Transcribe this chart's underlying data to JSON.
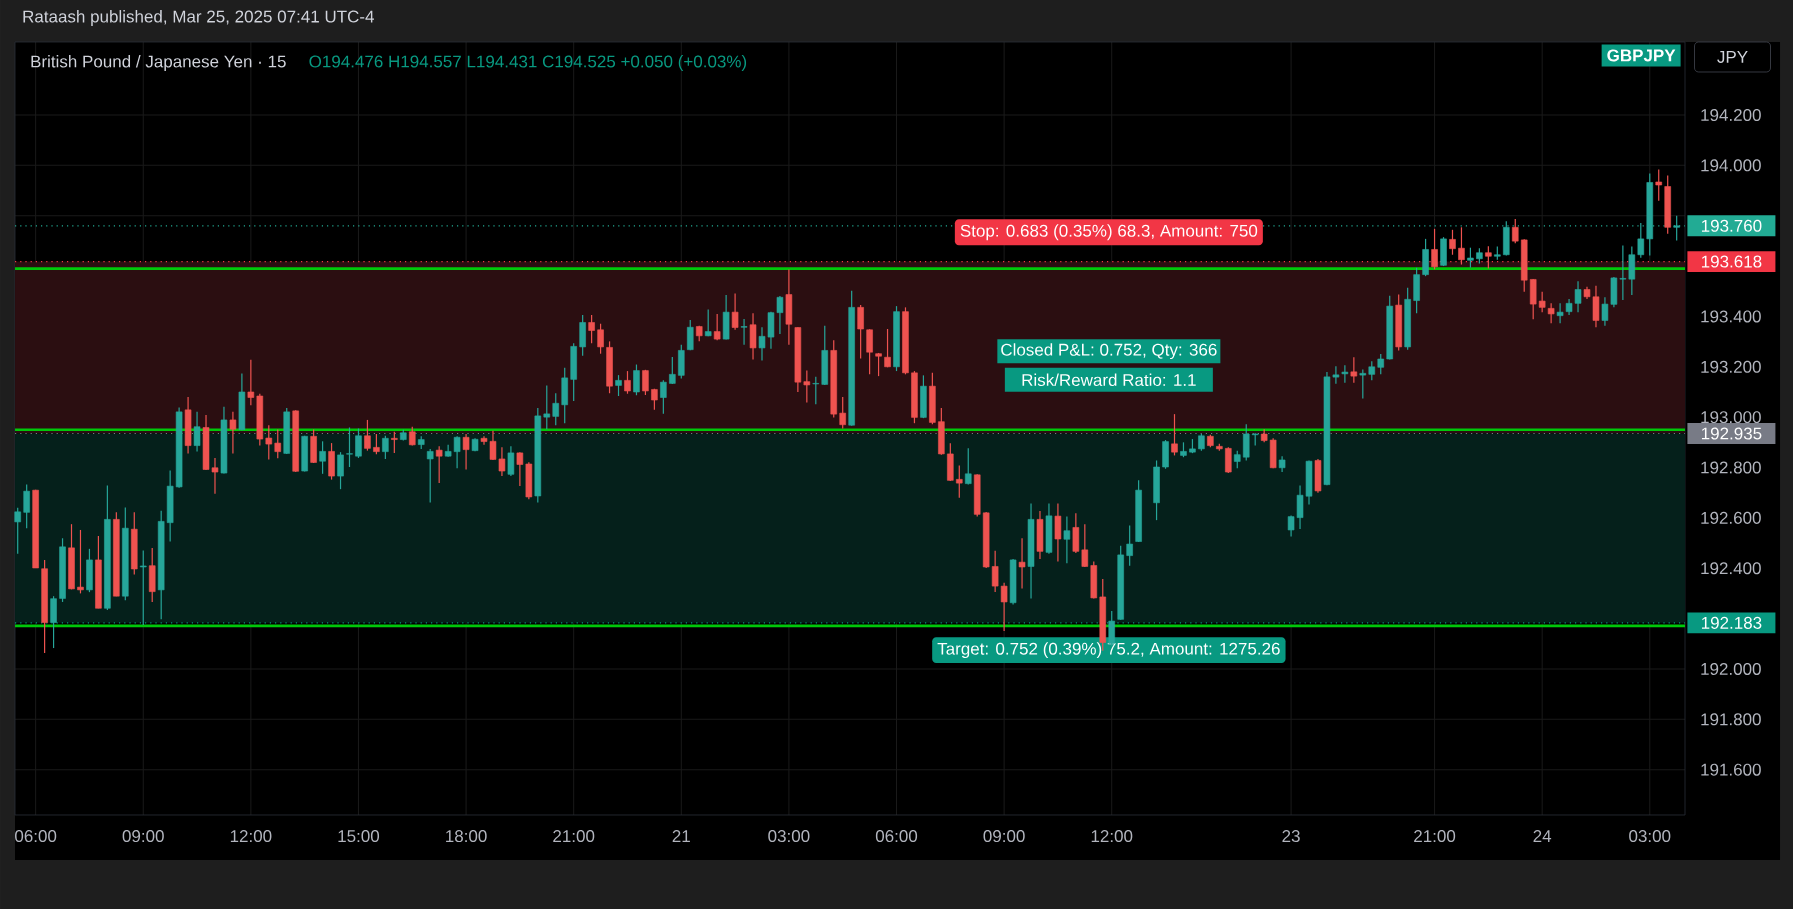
{
  "chart_data": {
    "type": "candlestick",
    "title": "British Pound / Japanese Yen · 15",
    "subtitle": "O194.476 H194.557 L194.431 C194.525 +0.050 (+0.03%)",
    "annotations": [
      "Rataash published, Mar 25, 2025 07:41 UTC-4",
      "GBPJPY",
      "JPY",
      {
        "text": "Stop: 0.683 (0.35%) 68.3, Amount: 750",
        "y": 193.618
      },
      {
        "text": "Target: 0.752 (0.39%) 75.2, Amount: 1275.26",
        "y": 192.183
      },
      "Closed P&L: 0.752, Qty: 366",
      "Risk/Reward Ratio: 1.1"
    ],
    "categories": [
      null,
      null,
      "06:00",
      null,
      null,
      null,
      null,
      null,
      null,
      null,
      null,
      null,
      null,
      null,
      "09:00",
      null,
      null,
      null,
      null,
      null,
      null,
      null,
      null,
      null,
      null,
      null,
      "12:00",
      null,
      null,
      null,
      null,
      null,
      null,
      null,
      null,
      null,
      null,
      null,
      "15:00",
      null,
      null,
      null,
      null,
      null,
      null,
      null,
      null,
      null,
      null,
      null,
      "18:00",
      null,
      null,
      null,
      null,
      null,
      null,
      null,
      null,
      null,
      null,
      null,
      "21:00",
      null,
      null,
      null,
      null,
      null,
      null,
      null,
      null,
      null,
      null,
      null,
      "21",
      null,
      null,
      null,
      null,
      null,
      null,
      null,
      null,
      null,
      null,
      null,
      "03:00",
      null,
      null,
      null,
      null,
      null,
      null,
      null,
      null,
      null,
      null,
      null,
      "06:00",
      null,
      null,
      null,
      null,
      null,
      null,
      null,
      null,
      null,
      null,
      null,
      "09:00",
      null,
      null,
      null,
      null,
      null,
      null,
      null,
      null,
      null,
      null,
      null,
      "12:00",
      null,
      null,
      null,
      null,
      null,
      null,
      null,
      null,
      null,
      null,
      null,
      null,
      null,
      null,
      null,
      null,
      null,
      null,
      null,
      "23",
      null,
      null,
      null,
      null,
      null,
      null,
      null,
      null,
      null,
      null,
      null,
      null,
      null,
      null,
      null,
      "21:00",
      null,
      null,
      null,
      null,
      null,
      null,
      null,
      null,
      null,
      null,
      null,
      "24",
      null,
      null,
      null,
      null,
      null,
      null,
      null,
      null,
      null,
      null,
      null,
      "03:00",
      null,
      null,
      null
    ],
    "ohlc": [
      [
        192.584,
        192.64,
        192.457,
        192.624
      ],
      [
        192.622,
        192.733,
        192.559,
        192.706
      ],
      [
        192.71,
        192.712,
        192.401,
        192.401
      ],
      [
        192.398,
        192.433,
        192.063,
        192.184
      ],
      [
        192.184,
        192.289,
        192.083,
        192.279
      ],
      [
        192.28,
        192.519,
        192.266,
        192.485
      ],
      [
        192.481,
        192.575,
        192.316,
        192.318
      ],
      [
        192.325,
        192.552,
        192.3,
        192.314
      ],
      [
        192.314,
        192.477,
        192.305,
        192.433
      ],
      [
        192.433,
        192.528,
        192.241,
        192.241
      ],
      [
        192.241,
        192.729,
        192.234,
        192.594
      ],
      [
        192.594,
        192.622,
        192.289,
        192.289
      ],
      [
        192.289,
        192.641,
        192.273,
        192.559
      ],
      [
        192.555,
        192.622,
        192.375,
        192.397
      ],
      [
        192.405,
        192.47,
        192.175,
        192.409
      ],
      [
        192.41,
        192.48,
        192.266,
        192.307
      ],
      [
        192.314,
        192.628,
        192.197,
        192.586
      ],
      [
        192.581,
        192.788,
        192.506,
        192.726
      ],
      [
        192.723,
        193.038,
        192.72,
        193.021
      ],
      [
        193.029,
        193.08,
        192.856,
        192.887
      ],
      [
        192.887,
        193.021,
        192.864,
        192.962
      ],
      [
        192.959,
        193.009,
        192.79,
        192.792
      ],
      [
        192.799,
        192.838,
        192.696,
        192.782
      ],
      [
        192.778,
        193.041,
        192.776,
        192.989
      ],
      [
        192.989,
        193.021,
        192.856,
        192.952
      ],
      [
        192.95,
        193.173,
        192.948,
        193.1
      ],
      [
        193.1,
        193.228,
        193.047,
        193.078
      ],
      [
        193.084,
        193.093,
        192.887,
        192.913
      ],
      [
        192.917,
        192.968,
        192.832,
        192.893
      ],
      [
        192.897,
        192.951,
        192.837,
        192.863
      ],
      [
        192.856,
        193.036,
        192.854,
        193.021
      ],
      [
        193.025,
        193.027,
        192.782,
        192.785
      ],
      [
        192.786,
        192.926,
        192.784,
        192.924
      ],
      [
        192.924,
        192.951,
        192.818,
        192.82
      ],
      [
        192.825,
        192.904,
        192.775,
        192.864
      ],
      [
        192.864,
        192.897,
        192.752,
        192.766
      ],
      [
        192.766,
        192.861,
        192.714,
        192.85
      ],
      [
        192.853,
        192.959,
        192.802,
        192.855
      ],
      [
        192.845,
        192.955,
        192.838,
        192.926
      ],
      [
        192.926,
        192.989,
        192.867,
        192.876
      ],
      [
        192.88,
        192.933,
        192.853,
        192.863
      ],
      [
        192.863,
        192.926,
        192.834,
        192.916
      ],
      [
        192.916,
        192.942,
        192.858,
        192.911
      ],
      [
        192.911,
        192.95,
        192.907,
        192.938
      ],
      [
        192.942,
        192.962,
        192.887,
        192.89
      ],
      [
        192.891,
        192.924,
        192.874,
        192.911
      ],
      [
        192.834,
        192.874,
        192.661,
        192.864
      ],
      [
        192.869,
        192.884,
        192.738,
        192.845
      ],
      [
        192.845,
        192.89,
        192.843,
        192.864
      ],
      [
        192.863,
        192.924,
        192.797,
        192.92
      ],
      [
        192.92,
        192.933,
        192.792,
        192.871
      ],
      [
        192.867,
        192.916,
        192.865,
        192.912
      ],
      [
        192.916,
        192.924,
        192.89,
        192.903
      ],
      [
        192.904,
        192.946,
        192.83,
        192.832
      ],
      [
        192.834,
        192.88,
        192.766,
        192.786
      ],
      [
        192.773,
        192.884,
        192.766,
        192.858
      ],
      [
        192.858,
        192.861,
        192.727,
        192.812
      ],
      [
        192.814,
        192.821,
        192.674,
        192.683
      ],
      [
        192.687,
        193.036,
        192.661,
        193.005
      ],
      [
        193.0,
        193.126,
        192.952,
        193.013
      ],
      [
        193.003,
        193.095,
        192.968,
        193.055
      ],
      [
        193.049,
        193.196,
        192.976,
        193.156
      ],
      [
        193.15,
        193.294,
        193.064,
        193.281
      ],
      [
        193.279,
        193.406,
        193.244,
        193.376
      ],
      [
        193.376,
        193.406,
        193.294,
        193.344
      ],
      [
        193.347,
        193.371,
        193.252,
        193.279
      ],
      [
        193.277,
        193.301,
        193.095,
        193.123
      ],
      [
        193.126,
        193.167,
        193.084,
        193.146
      ],
      [
        193.146,
        193.183,
        193.093,
        193.104
      ],
      [
        193.1,
        193.209,
        193.087,
        193.185
      ],
      [
        193.185,
        193.188,
        193.088,
        193.104
      ],
      [
        193.11,
        193.113,
        193.029,
        193.068
      ],
      [
        193.078,
        193.147,
        193.014,
        193.139
      ],
      [
        193.134,
        193.239,
        193.132,
        193.17
      ],
      [
        193.166,
        193.288,
        193.154,
        193.265
      ],
      [
        193.268,
        193.386,
        193.266,
        193.357
      ],
      [
        193.36,
        193.363,
        193.301,
        193.323
      ],
      [
        193.323,
        193.428,
        193.321,
        193.34
      ],
      [
        193.34,
        193.41,
        193.305,
        193.31
      ],
      [
        193.31,
        193.485,
        193.308,
        193.417
      ],
      [
        193.417,
        193.491,
        193.347,
        193.356
      ],
      [
        193.357,
        193.39,
        193.288,
        193.36
      ],
      [
        193.367,
        193.413,
        193.229,
        193.275
      ],
      [
        193.275,
        193.357,
        193.225,
        193.321
      ],
      [
        193.318,
        193.419,
        193.272,
        193.415
      ],
      [
        193.415,
        193.481,
        193.33,
        193.476
      ],
      [
        193.487,
        193.586,
        193.288,
        193.369
      ],
      [
        193.356,
        193.357,
        193.1,
        193.139
      ],
      [
        193.141,
        193.185,
        193.058,
        193.128
      ],
      [
        193.132,
        193.16,
        193.051,
        193.134
      ],
      [
        193.13,
        193.363,
        193.128,
        193.265
      ],
      [
        193.265,
        193.305,
        192.999,
        193.012
      ],
      [
        193.016,
        193.08,
        192.955,
        192.97
      ],
      [
        192.968,
        193.502,
        192.966,
        193.436
      ],
      [
        193.436,
        193.445,
        193.233,
        193.35
      ],
      [
        193.347,
        193.349,
        193.17,
        193.258
      ],
      [
        193.252,
        193.255,
        193.163,
        193.242
      ],
      [
        193.238,
        193.35,
        193.198,
        193.2
      ],
      [
        193.2,
        193.441,
        193.183,
        193.419
      ],
      [
        193.419,
        193.436,
        193.17,
        193.176
      ],
      [
        193.176,
        193.183,
        192.976,
        192.999
      ],
      [
        192.999,
        193.166,
        192.996,
        193.123
      ],
      [
        193.123,
        193.176,
        192.972,
        192.979
      ],
      [
        192.982,
        193.036,
        192.851,
        192.854
      ],
      [
        192.854,
        192.896,
        192.746,
        192.749
      ],
      [
        192.753,
        192.808,
        192.68,
        192.738
      ],
      [
        192.736,
        192.876,
        192.733,
        192.775
      ],
      [
        192.771,
        192.773,
        192.605,
        192.614
      ],
      [
        192.62,
        192.623,
        192.401,
        192.405
      ],
      [
        192.407,
        192.469,
        192.306,
        192.329
      ],
      [
        192.329,
        192.342,
        192.151,
        192.266
      ],
      [
        192.263,
        192.437,
        192.256,
        192.433
      ],
      [
        192.424,
        192.519,
        192.319,
        192.405
      ],
      [
        192.407,
        192.657,
        192.28,
        192.594
      ],
      [
        192.594,
        192.627,
        192.437,
        192.467
      ],
      [
        192.463,
        192.657,
        192.457,
        192.608
      ],
      [
        192.607,
        192.657,
        192.427,
        192.516
      ],
      [
        192.515,
        192.605,
        192.42,
        192.549
      ],
      [
        192.562,
        192.618,
        192.46,
        192.467
      ],
      [
        192.473,
        192.575,
        192.405,
        192.407
      ],
      [
        192.411,
        192.427,
        192.28,
        192.282
      ],
      [
        192.286,
        192.357,
        192.072,
        192.105
      ],
      [
        192.101,
        192.23,
        192.092,
        192.19
      ],
      [
        192.197,
        192.489,
        192.195,
        192.453
      ],
      [
        192.45,
        192.57,
        192.41,
        192.496
      ],
      [
        192.506,
        192.749,
        192.504,
        192.71
      ],
      null,
      [
        192.66,
        192.828,
        192.591,
        192.802
      ],
      [
        192.802,
        192.909,
        192.795,
        192.903
      ],
      [
        192.894,
        193.012,
        192.848,
        192.861
      ],
      [
        192.848,
        192.9,
        192.841,
        192.864
      ],
      [
        192.861,
        192.913,
        192.857,
        192.874
      ],
      [
        192.874,
        192.933,
        192.867,
        192.926
      ],
      [
        192.924,
        192.93,
        192.88,
        192.887
      ],
      [
        192.884,
        192.894,
        192.867,
        192.874
      ],
      [
        192.876,
        192.88,
        192.778,
        192.782
      ],
      [
        192.824,
        192.867,
        192.797,
        192.851
      ],
      [
        192.841,
        192.972,
        192.828,
        192.933
      ],
      [
        192.93,
        192.936,
        192.887,
        192.933
      ],
      [
        192.933,
        192.952,
        192.9,
        192.907
      ],
      [
        192.909,
        192.916,
        192.797,
        192.799
      ],
      [
        192.799,
        192.845,
        192.782,
        192.83
      ],
      [
        192.552,
        192.609,
        192.526,
        192.605
      ],
      [
        192.601,
        192.729,
        192.556,
        192.69
      ],
      [
        192.686,
        192.828,
        192.653,
        192.825
      ],
      [
        192.828,
        192.834,
        192.7,
        192.707
      ],
      [
        192.732,
        193.179,
        192.73,
        193.16
      ],
      [
        193.159,
        193.202,
        193.133,
        193.168
      ],
      [
        193.172,
        193.206,
        193.137,
        193.179
      ],
      [
        193.18,
        193.238,
        193.137,
        193.163
      ],
      [
        193.167,
        193.189,
        193.074,
        193.174
      ],
      [
        193.17,
        193.222,
        193.147,
        193.2
      ],
      [
        193.198,
        193.251,
        193.17,
        193.231
      ],
      [
        193.231,
        193.482,
        193.229,
        193.441
      ],
      [
        193.445,
        193.487,
        193.265,
        193.279
      ],
      [
        193.279,
        193.514,
        193.268,
        193.468
      ],
      [
        193.463,
        193.593,
        193.413,
        193.566
      ],
      [
        193.566,
        193.708,
        193.56,
        193.666
      ],
      [
        193.666,
        193.748,
        193.587,
        193.597
      ],
      [
        193.603,
        193.715,
        193.6,
        193.708
      ],
      [
        193.706,
        193.744,
        193.645,
        193.669
      ],
      [
        193.671,
        193.754,
        193.606,
        193.625
      ],
      [
        193.623,
        193.673,
        193.594,
        193.632
      ],
      [
        193.629,
        193.671,
        193.61,
        193.653
      ],
      [
        193.653,
        193.679,
        193.59,
        193.639
      ],
      [
        193.639,
        193.678,
        193.625,
        193.645
      ],
      [
        193.645,
        193.778,
        193.642,
        193.754
      ],
      [
        193.754,
        193.787,
        193.691,
        193.699
      ],
      [
        193.704,
        193.707,
        193.498,
        193.544
      ],
      [
        193.547,
        193.549,
        193.389,
        193.449
      ],
      [
        193.461,
        193.498,
        193.417,
        193.436
      ],
      [
        193.432,
        193.452,
        193.373,
        193.41
      ],
      [
        193.403,
        193.452,
        193.373,
        193.417
      ],
      [
        193.419,
        193.469,
        193.406,
        193.452
      ],
      [
        193.452,
        193.54,
        193.417,
        193.507
      ],
      [
        193.507,
        193.518,
        193.469,
        193.478
      ],
      [
        193.478,
        193.522,
        193.357,
        193.384
      ],
      [
        193.384,
        193.476,
        193.363,
        193.449
      ],
      [
        193.448,
        193.557,
        193.436,
        193.553
      ],
      [
        193.548,
        193.682,
        193.465,
        193.551
      ],
      [
        193.548,
        193.678,
        193.485,
        193.645
      ],
      [
        193.645,
        193.771,
        193.633,
        193.708
      ],
      [
        193.708,
        193.968,
        193.642,
        193.932
      ],
      [
        193.934,
        193.984,
        193.859,
        193.922
      ],
      [
        193.916,
        193.96,
        193.728,
        193.754
      ],
      [
        193.754,
        193.8,
        193.702,
        193.76
      ]
    ],
    "colors": [
      "#26a69a",
      "#26a69a",
      "#ef5350",
      "#ef5350",
      "#26a69a",
      "#26a69a",
      "#ef5350",
      "#ef5350",
      "#26a69a",
      "#ef5350",
      "#26a69a",
      "#ef5350",
      "#26a69a",
      "#ef5350",
      "#26a69a",
      "#ef5350",
      "#26a69a",
      "#26a69a",
      "#26a69a",
      "#ef5350",
      "#26a69a",
      "#ef5350",
      "#ef5350",
      "#26a69a",
      "#ef5350",
      "#26a69a",
      "#ef5350",
      "#ef5350",
      "#ef5350",
      "#ef5350",
      "#26a69a",
      "#ef5350",
      "#26a69a",
      "#ef5350",
      "#26a69a",
      "#ef5350",
      "#26a69a",
      "#26a69a",
      "#26a69a",
      "#ef5350",
      "#ef5350",
      "#26a69a",
      "#ef5350",
      "#26a69a",
      "#ef5350",
      "#26a69a",
      "#26a69a",
      "#ef5350",
      "#26a69a",
      "#26a69a",
      "#ef5350",
      "#26a69a",
      "#ef5350",
      "#ef5350",
      "#ef5350",
      "#26a69a",
      "#ef5350",
      "#ef5350",
      "#26a69a",
      "#26a69a",
      "#26a69a",
      "#26a69a",
      "#26a69a",
      "#26a69a",
      "#ef5350",
      "#ef5350",
      "#ef5350",
      "#26a69a",
      "#ef5350",
      "#26a69a",
      "#ef5350",
      "#ef5350",
      "#26a69a",
      "#26a69a",
      "#26a69a",
      "#26a69a",
      "#ef5350",
      "#26a69a",
      "#ef5350",
      "#26a69a",
      "#ef5350",
      "#26a69a",
      "#ef5350",
      "#26a69a",
      "#26a69a",
      "#26a69a",
      "#ef5350",
      "#ef5350",
      "#ef5350",
      "#26a69a",
      "#26a69a",
      "#ef5350",
      "#ef5350",
      "#26a69a",
      "#ef5350",
      "#ef5350",
      "#ef5350",
      "#ef5350",
      "#26a69a",
      "#ef5350",
      "#ef5350",
      "#26a69a",
      "#ef5350",
      "#ef5350",
      "#ef5350",
      "#ef5350",
      "#26a69a",
      "#ef5350",
      "#ef5350",
      "#ef5350",
      "#ef5350",
      "#26a69a",
      "#ef5350",
      "#26a69a",
      "#ef5350",
      "#26a69a",
      "#ef5350",
      "#26a69a",
      "#ef5350",
      "#ef5350",
      "#ef5350",
      "#ef5350",
      "#26a69a",
      "#26a69a",
      "#26a69a",
      "#26a69a",
      null,
      "#26a69a",
      "#26a69a",
      "#ef5350",
      "#26a69a",
      "#26a69a",
      "#26a69a",
      "#ef5350",
      "#ef5350",
      "#ef5350",
      "#26a69a",
      "#26a69a",
      "#26a69a",
      "#ef5350",
      "#ef5350",
      "#26a69a",
      "#26a69a",
      "#26a69a",
      "#26a69a",
      "#ef5350",
      "#26a69a",
      "#26a69a",
      "#26a69a",
      "#ef5350",
      "#26a69a",
      "#26a69a",
      "#26a69a",
      "#26a69a",
      "#ef5350",
      "#26a69a",
      "#26a69a",
      "#26a69a",
      "#ef5350",
      "#26a69a",
      "#ef5350",
      "#ef5350",
      "#26a69a",
      "#26a69a",
      "#ef5350",
      "#26a69a",
      "#26a69a",
      "#ef5350",
      "#ef5350",
      "#ef5350",
      "#ef5350",
      "#ef5350",
      "#26a69a",
      "#26a69a",
      "#26a69a",
      "#ef5350",
      "#ef5350",
      "#26a69a",
      "#26a69a",
      "#26a69a",
      "#26a69a",
      "#26a69a",
      "#26a69a",
      "#ef5350",
      "#ef5350",
      "#26a69a"
    ],
    "ylim": [
      191.42,
      194.49
    ],
    "yticks": [
      {
        "value": 191.6,
        "label": "191.600"
      },
      {
        "value": 191.8,
        "label": "191.800"
      },
      {
        "value": 192.0,
        "label": "192.000"
      },
      {
        "value": 192.2,
        "label": null
      },
      {
        "value": 192.4,
        "label": "192.400"
      },
      {
        "value": 192.6,
        "label": "192.600"
      },
      {
        "value": 192.8,
        "label": "192.800"
      },
      {
        "value": 193.0,
        "label": "193.000"
      },
      {
        "value": 193.2,
        "label": "193.200"
      },
      {
        "value": 193.4,
        "label": "193.400"
      },
      {
        "value": 193.6,
        "label": null
      },
      {
        "value": 193.8,
        "label": null
      },
      {
        "value": 194.0,
        "label": "194.000"
      },
      {
        "value": 194.2,
        "label": "194.200"
      }
    ],
    "grid": true,
    "bands": [
      {
        "axis": "y",
        "from": 192.935,
        "to": 193.618,
        "color": "#2b0e11"
      },
      {
        "axis": "y",
        "from": 192.183,
        "to": 192.935,
        "color": "#05201b"
      }
    ],
    "ref_lines": [
      {
        "axis": "y",
        "value": 193.59,
        "color": "#00c80a",
        "line_style": "solid"
      },
      {
        "axis": "y",
        "value": 192.95,
        "color": "#00c80a",
        "line_style": "solid"
      },
      {
        "axis": "y",
        "value": 192.171,
        "color": "#00c80a",
        "line_style": "solid"
      },
      {
        "axis": "y",
        "value": 193.76,
        "label": "193.760",
        "color": "#22ab94",
        "line_style": "dotted"
      },
      {
        "axis": "y",
        "value": 193.618,
        "label": "193.618",
        "color": "#f23645",
        "line_style": "dotted"
      },
      {
        "axis": "y",
        "value": 192.935,
        "label": "192.935",
        "color": "#787b86",
        "line_style": "dotted"
      },
      {
        "axis": "y",
        "value": 192.183,
        "label": "192.183",
        "color": "#089981",
        "line_style": "dotted"
      }
    ]
  }
}
